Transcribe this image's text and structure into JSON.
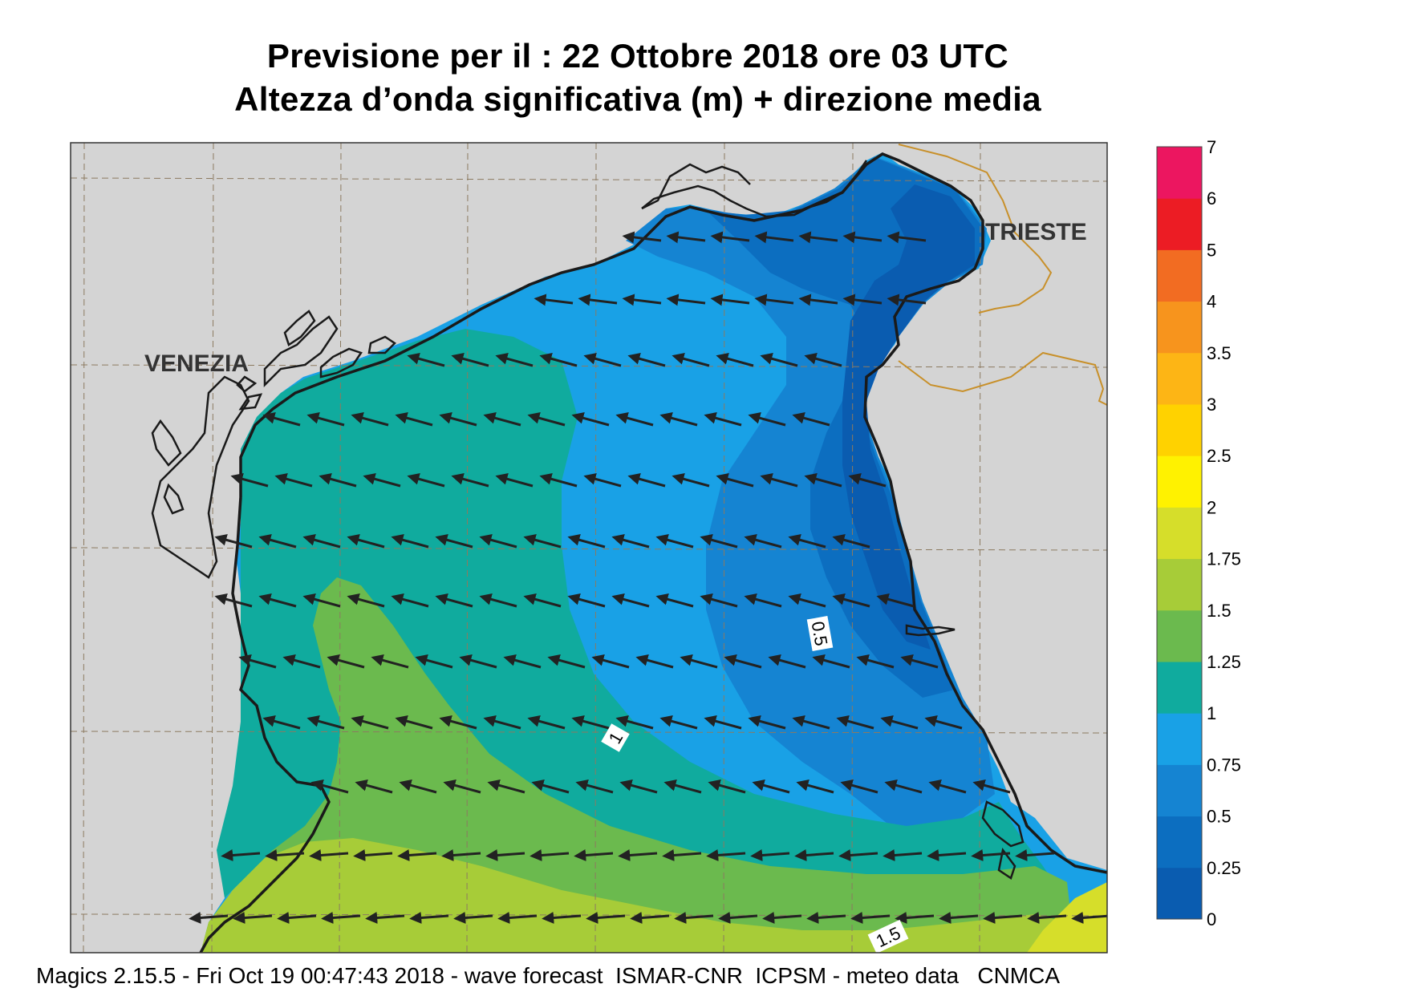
{
  "title": {
    "line1": "Previsione per il  :  22  Ottobre  2018   ore 03 UTC",
    "line2": "Altezza d’onda significativa (m) + direzione media"
  },
  "map": {
    "cities": [
      {
        "name": "VENEZIA"
      },
      {
        "name": "TRIESTE"
      }
    ],
    "contour_labels": [
      "0.5",
      "1",
      "1.5"
    ],
    "arrow_direction": "towards west-northwest",
    "colors": {
      "land": "#d4d4d4",
      "coast": "#1a1a1a",
      "border": "#c8902a",
      "grid": "#8c7a60",
      "arrow": "#222222"
    }
  },
  "legend": {
    "title": "",
    "classes": [
      {
        "from": "0",
        "to": "0.25",
        "color": "#0a5cb0"
      },
      {
        "from": "0.25",
        "to": "0.5",
        "color": "#0c6ec0"
      },
      {
        "from": "0.5",
        "to": "0.75",
        "color": "#1584d2"
      },
      {
        "from": "0.75",
        "to": "1",
        "color": "#19a1e6"
      },
      {
        "from": "1",
        "to": "1.25",
        "color": "#10ab9e"
      },
      {
        "from": "1.25",
        "to": "1.5",
        "color": "#6bba4e"
      },
      {
        "from": "1.5",
        "to": "1.75",
        "color": "#a7cc38"
      },
      {
        "from": "1.75",
        "to": "2",
        "color": "#d6de2a"
      },
      {
        "from": "2",
        "to": "2.5",
        "color": "#fff200"
      },
      {
        "from": "2.5",
        "to": "3",
        "color": "#ffd200"
      },
      {
        "from": "3",
        "to": "3.5",
        "color": "#fdb515"
      },
      {
        "from": "3.5",
        "to": "4",
        "color": "#f7941d"
      },
      {
        "from": "4",
        "to": "5",
        "color": "#f26c22"
      },
      {
        "from": "5",
        "to": "6",
        "color": "#ec1c24"
      },
      {
        "from": "6",
        "to": "7",
        "color": "#ec1660"
      }
    ],
    "tick_labels": [
      "0",
      "0.25",
      "0.5",
      "0.75",
      "1",
      "1.25",
      "1.5",
      "1.75",
      "2",
      "2.5",
      "3",
      "3.5",
      "4",
      "5",
      "6",
      "7"
    ]
  },
  "footer": "Magics 2.15.5 - Fri Oct 19 00:47:43 2018 - wave forecast  ISMAR-CNR  ICPSM - meteo data   CNMCA"
}
